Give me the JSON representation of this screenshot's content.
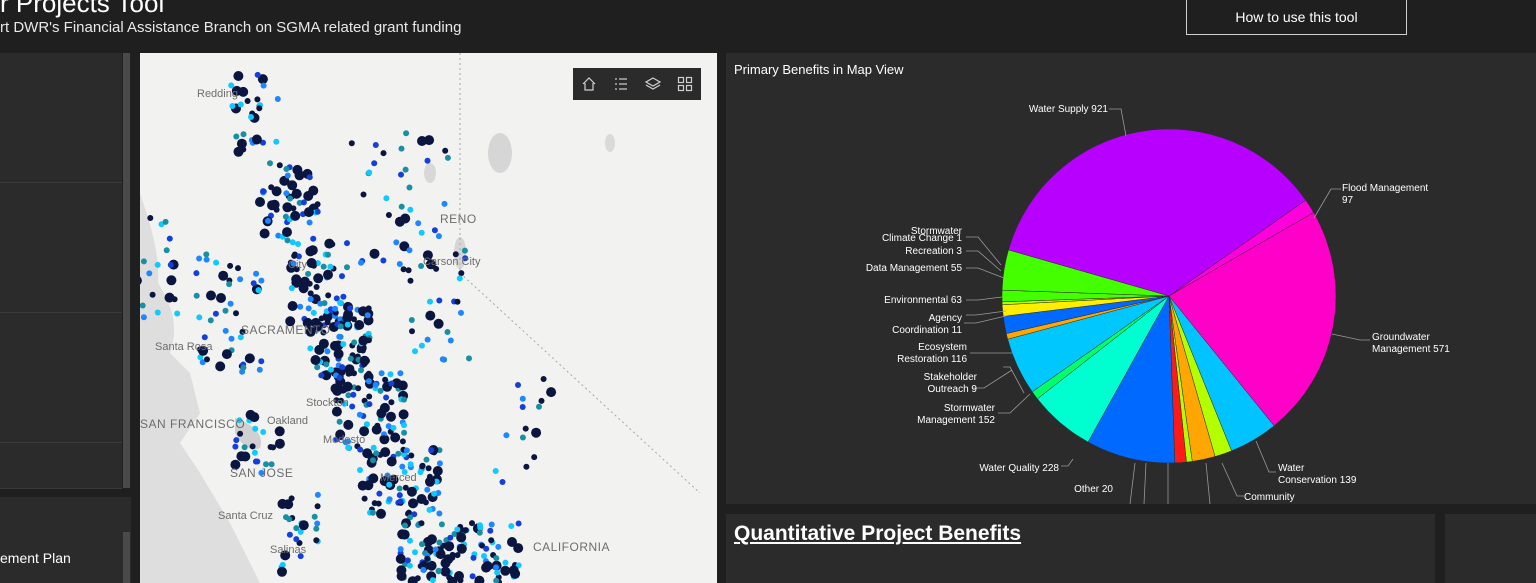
{
  "header": {
    "title": "r Projects Tool",
    "subtitle": "rt DWR's Financial Assistance Branch on SGMA related grant funding",
    "help_button": "How to use this tool"
  },
  "left_panel": {
    "bottom_label": "ement Plan"
  },
  "map": {
    "cities": [
      {
        "name": "Redding"
      },
      {
        "name": "RENO"
      },
      {
        "name": "City"
      },
      {
        "name": "Carson City"
      },
      {
        "name": "SACRAMENTO"
      },
      {
        "name": "Santa Rosa"
      },
      {
        "name": "Stockton"
      },
      {
        "name": "SAN FRANCISCO"
      },
      {
        "name": "Oakland"
      },
      {
        "name": "Modesto"
      },
      {
        "name": "SAN JOSE"
      },
      {
        "name": "Merced"
      },
      {
        "name": "Santa Cruz"
      },
      {
        "name": "Salinas"
      },
      {
        "name": "CALIFORNIA"
      }
    ],
    "toolbar": [
      {
        "icon": "home-icon"
      },
      {
        "icon": "legend-list-icon"
      },
      {
        "icon": "layers-icon"
      },
      {
        "icon": "basemap-gallery-icon"
      }
    ],
    "point_colors": [
      "#0b1640",
      "#1540d8",
      "#1f86ff",
      "#11c9ff",
      "#1a8fa3"
    ]
  },
  "chart_panel": {
    "title": "Primary Benefits in Map View"
  },
  "chart_data": {
    "type": "pie",
    "title": "Primary Benefits in Map View",
    "slices": [
      {
        "label": "Water Supply",
        "value": 921,
        "color": "#b700ff"
      },
      {
        "label": "Flood Management",
        "value": 97,
        "color": "#ff00dd"
      },
      {
        "label": "Groundwater Management",
        "value": 571,
        "color": "#ff00c8"
      },
      {
        "label": "Water Conservation",
        "value": 139,
        "color": "#00c3ff"
      },
      {
        "label": "Community",
        "value": null,
        "color": "#b3ff00"
      },
      {
        "label": "",
        "value": null,
        "color": "#ffa600"
      },
      {
        "label": "",
        "value": null,
        "color": "#b3ff00"
      },
      {
        "label": "Other",
        "value": 20,
        "color": "#ff1a1a"
      },
      {
        "label": "Water Quality",
        "value": 228,
        "color": "#0069ff"
      },
      {
        "label": "Stormwater Management",
        "value": 152,
        "color": "#00ffd0"
      },
      {
        "label": "Stakeholder Outreach",
        "value": 9,
        "color": "#00ff6a"
      },
      {
        "label": "Ecosystem Restoration",
        "value": 116,
        "color": "#00c8ff"
      },
      {
        "label": "Agency Coordination",
        "value": 11,
        "color": "#ffa600"
      },
      {
        "label": "Environmental",
        "value": 63,
        "color": "#0069ff"
      },
      {
        "label": "Data Management",
        "value": 55,
        "color": "#ffee00"
      },
      {
        "label": "Recreation",
        "value": 3,
        "color": "#b3ff00"
      },
      {
        "label": "Climate Change",
        "value": null,
        "color": "#44ff00"
      },
      {
        "label": "Stormwater",
        "value": null,
        "color": "#44ff00"
      }
    ],
    "labels": [
      {
        "text": "Water Supply 921"
      },
      {
        "text": "Flood Management"
      },
      {
        "text": "97"
      },
      {
        "text": "Groundwater"
      },
      {
        "text": "Management 571"
      },
      {
        "text": "Water"
      },
      {
        "text": "Conservation 139"
      },
      {
        "text": "Community"
      },
      {
        "text": "Other 20"
      },
      {
        "text": "Water Quality 228"
      },
      {
        "text": "Stormwater"
      },
      {
        "text": "Management 152"
      },
      {
        "text": "Stakeholder"
      },
      {
        "text": "Outreach 9"
      },
      {
        "text": "Ecosystem"
      },
      {
        "text": "Restoration 116"
      },
      {
        "text": "Agency"
      },
      {
        "text": "Coordination 11"
      },
      {
        "text": "Environmental 63"
      },
      {
        "text": "Data Management 55"
      },
      {
        "text": "Recreation 3"
      },
      {
        "text": "Climate Change 1"
      },
      {
        "text": "Stormwater"
      }
    ]
  },
  "qpb_panel": {
    "title": "Quantitative Project Benefits"
  }
}
